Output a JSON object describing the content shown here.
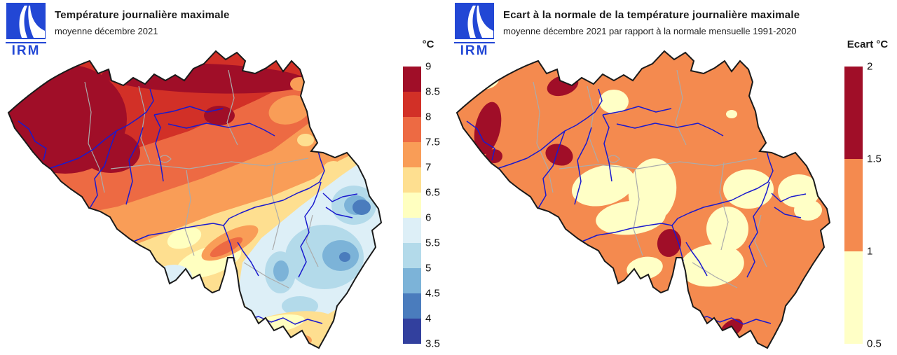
{
  "panels": [
    {
      "logo_text": "IRM",
      "title": "Température journalière maximale",
      "subtitle": "moyenne décembre 2021",
      "legend_title": "°C",
      "legend_ticks": [
        "9",
        "8.5",
        "8",
        "7.5",
        "7",
        "6.5",
        "6",
        "5.5",
        "5",
        "4.5",
        "4",
        "3.5"
      ],
      "legend_colors": [
        "#a00e28",
        "#d23027",
        "#ed6a43",
        "#f99d57",
        "#fedf90",
        "#ffffc0",
        "#ddeff7",
        "#b3daea",
        "#7cb3d8",
        "#4a7cbd",
        "#32409e"
      ]
    },
    {
      "logo_text": "IRM",
      "title": "Ecart à la normale de la température journalière maximale",
      "subtitle": "moyenne décembre 2021 par rapport à la normale mensuelle 1991-2020",
      "legend_title": "Ecart °C",
      "legend_ticks": [
        "2",
        "1.5",
        "1",
        "0.5"
      ],
      "legend_colors": [
        "#a00e28",
        "#f48a4f",
        "#ffffc6"
      ]
    }
  ],
  "palette": {
    "t1": "#a00e28",
    "t2": "#d23027",
    "t3": "#ed6a43",
    "t4": "#f99d57",
    "t5": "#fedf90",
    "t6": "#ffffc0",
    "t7": "#ddeff7",
    "t8": "#b3daea",
    "t9": "#7cb3d8",
    "t10": "#4a7cbd",
    "t11": "#32409e",
    "e1": "#a00e28",
    "e2": "#f48a4f",
    "e3": "#ffffc6"
  },
  "map": {
    "outline_color": "#1a1a1a",
    "province_color": "#ababab",
    "river_color": "#1a1ace",
    "logo_color": "#2247d5"
  },
  "chart_data": [
    {
      "type": "choropleth-map",
      "region": "Belgium",
      "title": "Température journalière maximale",
      "subtitle": "moyenne décembre 2021",
      "unit": "°C",
      "scale_ticks": [
        9,
        8.5,
        8,
        7.5,
        7,
        6.5,
        6,
        5.5,
        5,
        4.5,
        4,
        3.5
      ],
      "scale_colors": [
        "#a00e28",
        "#d23027",
        "#ed6a43",
        "#f99d57",
        "#fedf90",
        "#ffffc0",
        "#ddeff7",
        "#b3daea",
        "#7cb3d8",
        "#4a7cbd",
        "#32409e"
      ],
      "legend_position": "right",
      "pattern": "Warmest (8.5-9 °C) over northwest Flanders and the coast; 8-8.5 °C across central Flanders; cooling southeastward through 7-8 °C in central Belgium, 6-7 °C along the Sambre-Meuse, down to 3.5-4.5 °C over the eastern Ardennes / Hautes Fagnes; the far southern tip (Gaume) milder at 6-7 °C."
    },
    {
      "type": "choropleth-map",
      "region": "Belgium",
      "title": "Ecart à la normale de la température journalière maximale",
      "subtitle": "moyenne décembre 2021 par rapport à la normale mensuelle 1991-2020",
      "unit": "Ecart °C",
      "scale_ticks": [
        2,
        1.5,
        1,
        0.5
      ],
      "scale_colors": [
        "#a00e28",
        "#f48a4f",
        "#ffffc6"
      ],
      "legend_position": "right",
      "pattern": "Anomaly mostly +1 to +1.5 °C (orange); patches of +0.5 to +1 °C (pale yellow) near the coast, east of Antwerp, in central Hainaut/Brabant, around Liège-Verviers and the central south; small areas above +1.5 °C (dark red) in West Flanders, north of Ghent, south of Brussels, near Namur and at the southern tip."
    }
  ]
}
